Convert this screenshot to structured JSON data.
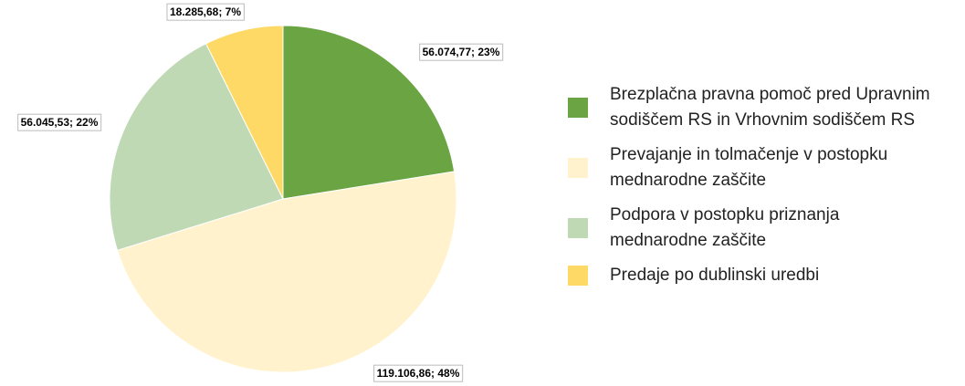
{
  "chart_data": {
    "type": "pie",
    "categories": [
      "Brezplačna pravna pomoč pred Upravnim sodiščem RS in Vrhovnim sodiščem RS",
      "Prevajanje in tolmačenje v postopku mednarodne zaščite",
      "Podpora v postopku priznanja mednarodne zaščite",
      "Predaje po dublinski uredbi"
    ],
    "values": [
      56074.77,
      119106.86,
      56045.53,
      18285.68
    ],
    "value_labels": [
      "56.074,77; 23%",
      "119.106,86; 48%",
      "56.045,53; 22%",
      "18.285,68; 7%"
    ],
    "colors": [
      "#6aa443",
      "#fff2cc",
      "#c0d9b5",
      "#ffd966"
    ],
    "legend": "right"
  }
}
